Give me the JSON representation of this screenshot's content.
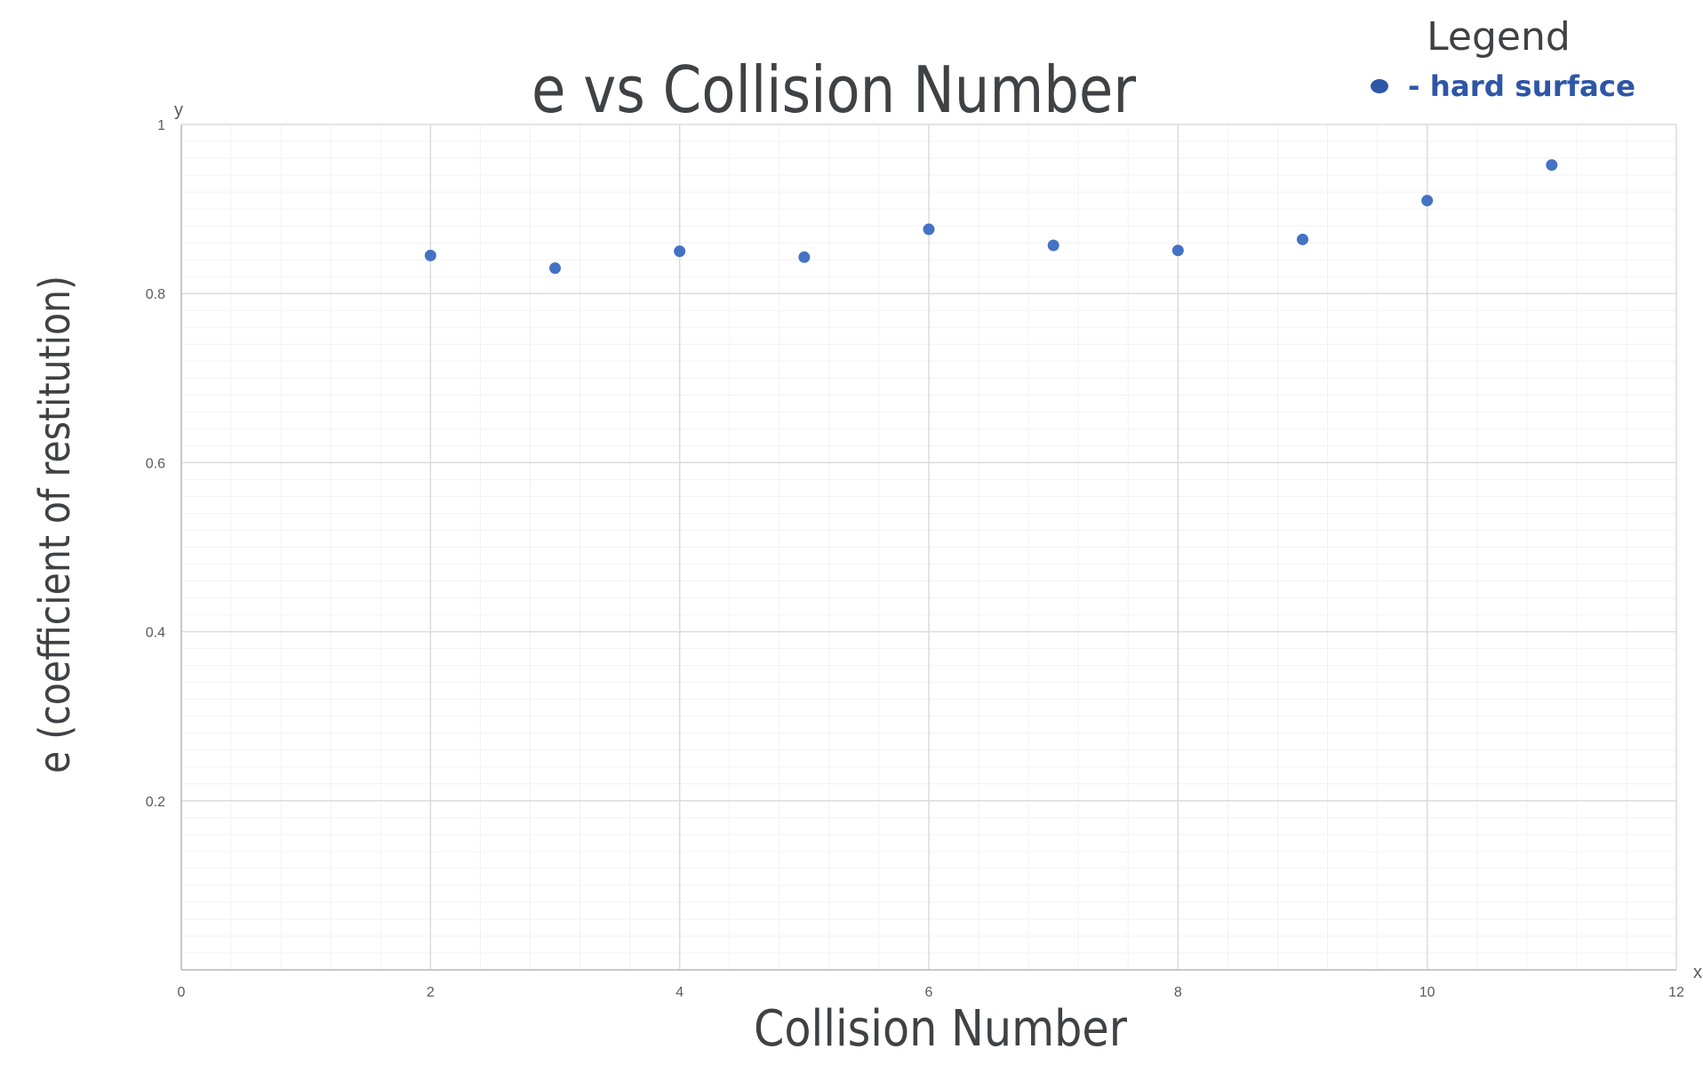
{
  "chart_data": {
    "type": "scatter",
    "title": "e vs Collision Number",
    "xlabel": "Collision Number",
    "ylabel": "e (coefficient of restitution)",
    "x_axis_letter": "x",
    "y_axis_letter": "y",
    "xlim": [
      0,
      12
    ],
    "ylim": [
      0,
      1
    ],
    "x_ticks": [
      0,
      2,
      4,
      6,
      8,
      10,
      12
    ],
    "y_ticks": [
      0.2,
      0.4,
      0.6,
      0.8,
      1
    ],
    "grid": true,
    "minor_grid": true,
    "legend": {
      "title": "Legend",
      "position": "top-right",
      "entries": [
        {
          "label": "- hard surface",
          "color": "#4472c4"
        }
      ]
    },
    "series": [
      {
        "color": "#4472c4",
        "points": [
          {
            "x": 2,
            "y": 0.845
          },
          {
            "x": 3,
            "y": 0.83
          },
          {
            "x": 4,
            "y": 0.85
          },
          {
            "x": 5,
            "y": 0.843
          },
          {
            "x": 6,
            "y": 0.876
          },
          {
            "x": 7,
            "y": 0.857
          },
          {
            "x": 8,
            "y": 0.851
          },
          {
            "x": 9,
            "y": 0.864
          },
          {
            "x": 10,
            "y": 0.91
          },
          {
            "x": 11,
            "y": 0.952
          }
        ]
      }
    ]
  }
}
